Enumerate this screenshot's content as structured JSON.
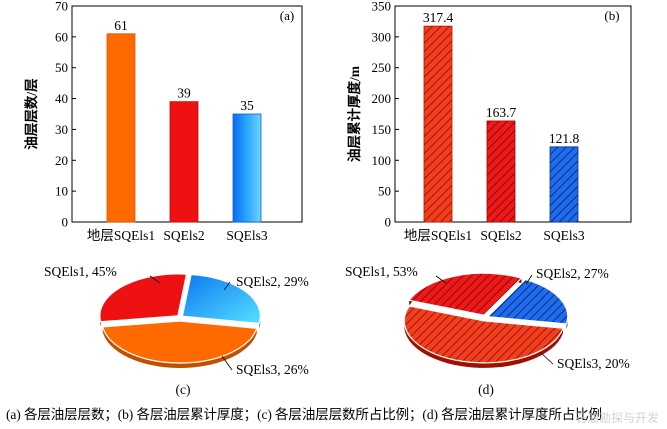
{
  "caption": "(a) 各层油层层数；(b) 各层油层累计厚度；(c) 各层油层层数所占比例；(d) 各层油层累计厚度所占比例",
  "watermark": "石油勘探与开发",
  "colors": {
    "orange": "#ff6a00",
    "red": "#ee1111",
    "blue": "#1e90ff",
    "hatch_red_bg": "#f03a1a",
    "hatch_blue_bg": "#1c63e8"
  },
  "chart_data": [
    {
      "id": "a",
      "panel_label": "(a)",
      "type": "bar",
      "categories": [
        "地层SQEls1",
        "SQEls2",
        "SQEls3"
      ],
      "values": [
        61,
        39,
        35
      ],
      "data_labels": [
        "61",
        "39",
        "35"
      ],
      "ylabel": "油层层数/层",
      "ylim": [
        0,
        70
      ],
      "yticks": [
        0,
        10,
        20,
        30,
        40,
        50,
        60,
        70
      ],
      "grid": false
    },
    {
      "id": "b",
      "panel_label": "(b)",
      "type": "bar",
      "categories": [
        "地层SQEls1",
        "SQEls2",
        "SQEls3"
      ],
      "values": [
        317.4,
        163.7,
        121.8
      ],
      "data_labels": [
        "317.4",
        "163.7",
        "121.8"
      ],
      "ylabel": "油层累计厚度/m",
      "ylim": [
        0,
        350
      ],
      "yticks": [
        0,
        50,
        100,
        150,
        200,
        250,
        300,
        350
      ],
      "grid": false
    },
    {
      "id": "c",
      "panel_label": "(c)",
      "type": "pie",
      "categories": [
        "SQEls1",
        "SQEls2",
        "SQEls3"
      ],
      "values": [
        45,
        29,
        26
      ],
      "slice_labels": [
        "SQEls1, 45%",
        "SQEls2, 29%",
        "SQEls3, 26%"
      ]
    },
    {
      "id": "d",
      "panel_label": "(d)",
      "type": "pie",
      "categories": [
        "SQEls1",
        "SQEls2",
        "SQEls3"
      ],
      "values": [
        53,
        27,
        20
      ],
      "slice_labels": [
        "SQEls1, 53%",
        "SQEls2, 27%",
        "SQEls3, 20%"
      ]
    }
  ]
}
